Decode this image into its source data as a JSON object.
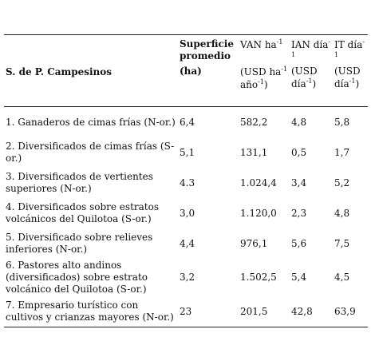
{
  "table": {
    "headers": [
      {
        "name": [
          "S. de P. Campesinos"
        ]
      },
      {
        "name": [
          "Superficie promedio"
        ],
        "unit": [
          "(ha)"
        ]
      },
      {
        "name": [
          "VAN ha",
          {
            "sup": "-1"
          }
        ],
        "unit": [
          "(USD ha",
          {
            "sup": "-1"
          },
          " año",
          {
            "sup": "-1"
          },
          ")"
        ]
      },
      {
        "name": [
          "IAN día",
          {
            "sup": "-1"
          }
        ],
        "unit": [
          "(USD día",
          {
            "sup": "-1"
          },
          ")"
        ]
      },
      {
        "name": [
          "IT día",
          {
            "sup": "-1"
          }
        ],
        "unit": [
          "(USD día",
          {
            "sup": "-1"
          },
          ")"
        ]
      }
    ],
    "rows": [
      [
        "1. Ganaderos de cimas frías (N-or.)",
        "6,4",
        "582,2",
        "4,8",
        "5,8"
      ],
      [
        "2. Diversificados de cimas frías (S-or.)",
        "5,1",
        "131,1",
        "0,5",
        "1,7"
      ],
      [
        "3. Diversificados de vertientes superiores (N-or.)",
        "4.3",
        "1.024,4",
        "3,4",
        "5,2"
      ],
      [
        "4. Diversificados sobre estratos volcánicos del Quilotoa (S-or.)",
        "3,0",
        "1.120,0",
        "2,3",
        "4,8"
      ],
      [
        "5. Diversificado sobre relieves inferiores (N-or.)",
        "4,4",
        "976,1",
        "5,6",
        "7,5"
      ],
      [
        "6. Pastores alto andinos (diversificados) sobre estrato volcánico del Quilotoa (S-or.)",
        "3,2",
        "1.502,5",
        "5,4",
        "4,5"
      ],
      [
        "7. Empresario turístico con cultivos y crianzas mayores (N-or.)",
        "23",
        "201,5",
        "42,8",
        "63,9"
      ]
    ]
  }
}
